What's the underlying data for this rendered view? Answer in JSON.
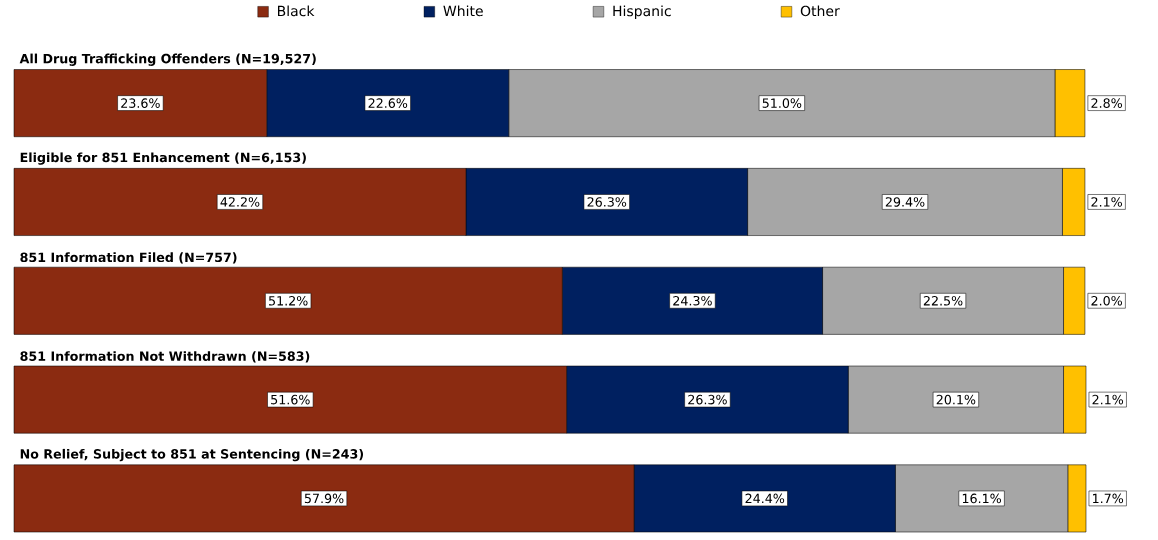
{
  "chart_data": {
    "type": "bar",
    "orientation": "horizontal",
    "stacked": true,
    "legend": "top",
    "categories": [
      "All Drug Trafficking Offenders (N=19,527)",
      "Eligible for 851 Enhancement (N=6,153)",
      "851 Information Filed (N=757)",
      "851 Information Not Withdrawn (N=583)",
      "No Relief, Subject to 851 at Sentencing (N=243)"
    ],
    "series": [
      {
        "name": "Black",
        "color": "#8b2b11",
        "values": [
          23.6,
          42.2,
          51.2,
          51.6,
          57.9
        ],
        "value_labels": [
          "23.6%",
          "42.2%",
          "51.2%",
          "51.6%",
          "57.9%"
        ]
      },
      {
        "name": "White",
        "color": "#002060",
        "values": [
          22.6,
          26.3,
          24.3,
          26.3,
          24.4
        ],
        "value_labels": [
          "22.6%",
          "26.3%",
          "24.3%",
          "26.3%",
          "24.4%"
        ]
      },
      {
        "name": "Hispanic",
        "color": "#a6a6a6",
        "values": [
          51.0,
          29.4,
          22.5,
          20.1,
          16.1
        ],
        "value_labels": [
          "51.0%",
          "29.4%",
          "22.5%",
          "20.1%",
          "16.1%"
        ]
      },
      {
        "name": "Other",
        "color": "#ffc000",
        "values": [
          2.8,
          2.1,
          2.0,
          2.1,
          1.7
        ],
        "value_labels": [
          "2.8%",
          "2.1%",
          "2.0%",
          "2.1%",
          "1.7%"
        ]
      }
    ]
  }
}
